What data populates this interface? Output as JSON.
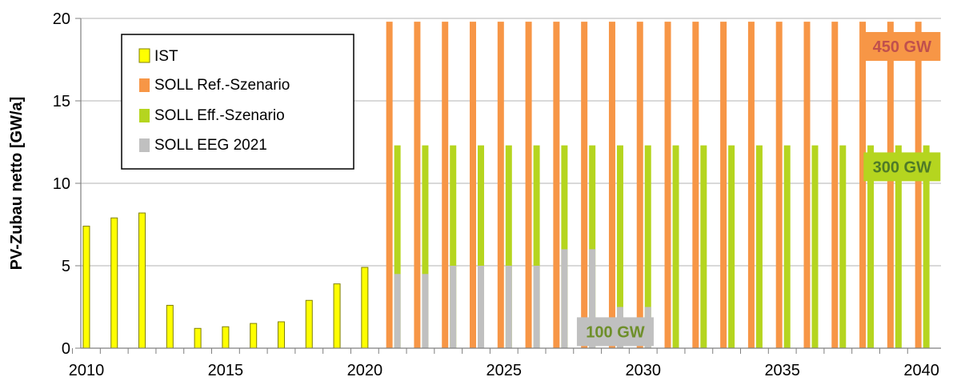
{
  "chart_data": {
    "type": "bar",
    "ylabel": "PV-Zubau netto [GW/a]",
    "ylim": [
      0,
      20
    ],
    "yticks": [
      0,
      5,
      10,
      15,
      20
    ],
    "xlim": [
      2009.8,
      2040.7
    ],
    "xticks": [
      2010,
      2015,
      2020,
      2025,
      2030,
      2035,
      2040
    ],
    "grid": "horizontal",
    "legend_position": "top-left",
    "series": [
      {
        "name": "IST",
        "color": "#ffff00",
        "edge_color": "#7f7f00",
        "x": [
          2010,
          2011,
          2012,
          2013,
          2014,
          2015,
          2016,
          2017,
          2018,
          2019,
          2020
        ],
        "values": [
          7.4,
          7.9,
          8.2,
          2.6,
          1.2,
          1.3,
          1.5,
          1.6,
          2.9,
          3.9,
          4.9
        ]
      },
      {
        "name": "SOLL Ref.-Szenario",
        "color": "#f79646",
        "x": [
          2021,
          2022,
          2023,
          2024,
          2025,
          2026,
          2027,
          2028,
          2029,
          2030,
          2031,
          2032,
          2033,
          2034,
          2035,
          2036,
          2037,
          2038,
          2039,
          2040
        ],
        "values": [
          19.8,
          19.8,
          19.8,
          19.8,
          19.8,
          19.8,
          19.8,
          19.8,
          19.8,
          19.8,
          19.8,
          19.8,
          19.8,
          19.8,
          19.8,
          19.8,
          19.8,
          19.8,
          19.8,
          19.8
        ]
      },
      {
        "name": "SOLL Eff.-Szenario",
        "color": "#b5d51f",
        "x": [
          2021,
          2022,
          2023,
          2024,
          2025,
          2026,
          2027,
          2028,
          2029,
          2030,
          2031,
          2032,
          2033,
          2034,
          2035,
          2036,
          2037,
          2038,
          2039,
          2040
        ],
        "values": [
          12.3,
          12.3,
          12.3,
          12.3,
          12.3,
          12.3,
          12.3,
          12.3,
          12.3,
          12.3,
          12.3,
          12.3,
          12.3,
          12.3,
          12.3,
          12.3,
          12.3,
          12.3,
          12.3,
          12.3
        ]
      },
      {
        "name": "SOLL EEG 2021",
        "color": "#c0c0c0",
        "x": [
          2021,
          2022,
          2023,
          2024,
          2025,
          2026,
          2027,
          2028,
          2029,
          2030
        ],
        "values": [
          4.5,
          4.5,
          5.0,
          5.0,
          5.0,
          5.0,
          6.0,
          6.0,
          2.5,
          2.5
        ]
      }
    ],
    "annotations": [
      {
        "text": "450 GW",
        "x": 2039.3,
        "y": 18.3,
        "bg": "#f79646",
        "color": "#c0504d"
      },
      {
        "text": "300 GW",
        "x": 2039.3,
        "y": 11.0,
        "bg": "#b5d51f",
        "color": "#4f7a28"
      },
      {
        "text": "100 GW",
        "x": 2029.0,
        "y": 1.0,
        "bg": "#c0c0c0",
        "color": "#6e8f2a"
      }
    ]
  }
}
